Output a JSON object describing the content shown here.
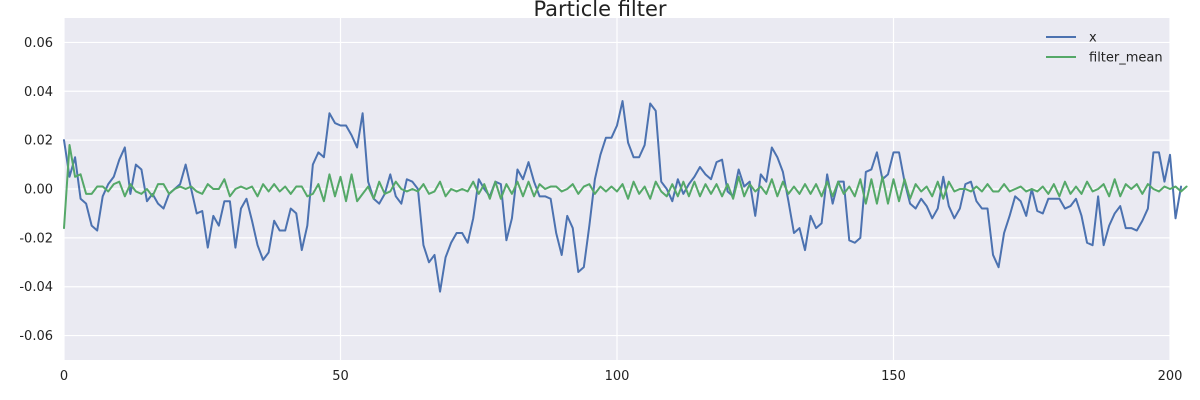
{
  "chart_data": {
    "type": "line",
    "title": "Particle filter",
    "xlabel": "",
    "ylabel": "",
    "xlim": [
      0,
      200
    ],
    "ylim": [
      -0.07,
      0.07
    ],
    "xticks": [
      0,
      50,
      100,
      150,
      200
    ],
    "yticks": [
      -0.06,
      -0.04,
      -0.02,
      0.0,
      0.02,
      0.04,
      0.06
    ],
    "grid": true,
    "legend_position": "top-right",
    "background_color": "#eaeaf2",
    "series": [
      {
        "name": "x",
        "color": "#4c72b0",
        "values": [
          0.02,
          0.005,
          0.013,
          -0.004,
          -0.006,
          -0.015,
          -0.017,
          -0.003,
          0.002,
          0.005,
          0.012,
          0.017,
          -0.002,
          0.01,
          0.008,
          -0.005,
          -0.002,
          -0.006,
          -0.008,
          -0.002,
          0.0,
          0.002,
          0.01,
          0.0,
          -0.01,
          -0.009,
          -0.024,
          -0.011,
          -0.015,
          -0.005,
          -0.005,
          -0.024,
          -0.008,
          -0.004,
          -0.013,
          -0.023,
          -0.029,
          -0.026,
          -0.013,
          -0.017,
          -0.017,
          -0.008,
          -0.01,
          -0.025,
          -0.015,
          0.01,
          0.015,
          0.013,
          0.031,
          0.027,
          0.026,
          0.026,
          0.022,
          0.017,
          0.031,
          0.003,
          -0.004,
          -0.006,
          -0.002,
          0.006,
          -0.003,
          -0.006,
          0.004,
          0.003,
          0.0,
          -0.023,
          -0.03,
          -0.027,
          -0.042,
          -0.028,
          -0.022,
          -0.018,
          -0.018,
          -0.022,
          -0.012,
          0.004,
          0.0,
          -0.003,
          0.003,
          0.002,
          -0.021,
          -0.012,
          0.008,
          0.004,
          0.011,
          0.003,
          -0.003,
          -0.003,
          -0.004,
          -0.018,
          -0.027,
          -0.011,
          -0.016,
          -0.034,
          -0.032,
          -0.015,
          0.004,
          0.014,
          0.021,
          0.021,
          0.026,
          0.036,
          0.019,
          0.013,
          0.013,
          0.018,
          0.035,
          0.032,
          0.003,
          0.0,
          -0.005,
          0.004,
          -0.002,
          0.002,
          0.005,
          0.009,
          0.006,
          0.004,
          0.011,
          0.012,
          -0.001,
          -0.003,
          0.008,
          0.001,
          0.003,
          -0.011,
          0.006,
          0.003,
          0.017,
          0.013,
          0.007,
          -0.005,
          -0.018,
          -0.016,
          -0.025,
          -0.011,
          -0.016,
          -0.014,
          0.006,
          -0.006,
          0.003,
          0.003,
          -0.021,
          -0.022,
          -0.02,
          0.007,
          0.008,
          0.015,
          0.004,
          0.006,
          0.015,
          0.015,
          0.003,
          -0.006,
          -0.008,
          -0.004,
          -0.007,
          -0.012,
          -0.008,
          0.005,
          -0.007,
          -0.012,
          -0.008,
          0.002,
          0.003,
          -0.005,
          -0.008,
          -0.008,
          -0.027,
          -0.032,
          -0.018,
          -0.011,
          -0.003,
          -0.005,
          -0.011,
          0.0,
          -0.009,
          -0.01,
          -0.004,
          -0.004,
          -0.004,
          -0.008,
          -0.007,
          -0.004,
          -0.011,
          -0.022,
          -0.023,
          -0.003,
          -0.023,
          -0.015,
          -0.01,
          -0.007,
          -0.016,
          -0.016,
          -0.017,
          -0.013,
          -0.008,
          0.015,
          0.015,
          0.003,
          0.014,
          -0.012,
          0.001
        ]
      },
      {
        "name": "filter_mean",
        "color": "#55a868",
        "values": [
          -0.016,
          0.018,
          0.005,
          0.006,
          -0.002,
          -0.002,
          0.001,
          0.001,
          -0.001,
          0.002,
          0.003,
          -0.003,
          0.002,
          -0.001,
          -0.002,
          0.0,
          -0.003,
          0.002,
          0.002,
          -0.002,
          0.0,
          0.001,
          0.0,
          0.001,
          -0.001,
          -0.002,
          0.002,
          0.0,
          0.0,
          0.004,
          -0.003,
          0.0,
          0.001,
          0.0,
          0.001,
          -0.003,
          0.002,
          -0.001,
          0.002,
          -0.001,
          0.001,
          -0.002,
          0.001,
          0.001,
          -0.003,
          -0.002,
          0.002,
          -0.005,
          0.006,
          -0.003,
          0.005,
          -0.005,
          0.006,
          -0.005,
          -0.002,
          0.001,
          -0.004,
          0.003,
          -0.002,
          -0.001,
          0.003,
          0.0,
          -0.001,
          0.0,
          -0.001,
          0.002,
          -0.002,
          -0.001,
          0.003,
          -0.003,
          0.0,
          -0.001,
          0.0,
          -0.001,
          0.003,
          -0.002,
          0.002,
          -0.004,
          0.003,
          -0.004,
          0.002,
          -0.002,
          0.003,
          -0.003,
          0.003,
          -0.003,
          0.002,
          0.0,
          0.001,
          0.001,
          -0.001,
          0.0,
          0.002,
          -0.002,
          0.001,
          0.002,
          -0.002,
          0.001,
          -0.001,
          0.001,
          -0.001,
          0.002,
          -0.004,
          0.003,
          -0.002,
          0.001,
          -0.004,
          0.003,
          -0.001,
          -0.003,
          0.002,
          -0.003,
          0.003,
          -0.003,
          0.003,
          -0.003,
          0.002,
          -0.002,
          0.002,
          -0.003,
          0.002,
          -0.004,
          0.005,
          -0.003,
          0.002,
          -0.001,
          0.001,
          -0.002,
          0.004,
          -0.003,
          0.003,
          -0.002,
          0.001,
          -0.002,
          0.002,
          -0.002,
          0.002,
          -0.003,
          0.003,
          -0.003,
          0.003,
          -0.002,
          0.001,
          -0.003,
          0.004,
          -0.006,
          0.004,
          -0.006,
          0.005,
          -0.006,
          0.004,
          -0.005,
          0.004,
          -0.004,
          0.002,
          -0.001,
          0.001,
          -0.003,
          0.003,
          -0.004,
          0.003,
          -0.001,
          0.0,
          0.0,
          -0.001,
          0.001,
          -0.001,
          0.002,
          -0.001,
          -0.001,
          0.002,
          -0.001,
          0.0,
          0.001,
          -0.001,
          0.0,
          -0.001,
          0.001,
          -0.002,
          0.002,
          -0.003,
          0.003,
          -0.002,
          0.001,
          -0.002,
          0.003,
          -0.001,
          0.0,
          0.002,
          -0.003,
          0.004,
          -0.003,
          0.002,
          0.0,
          0.002,
          -0.002,
          0.002,
          0.0,
          -0.001,
          0.001,
          0.0,
          0.001,
          -0.001,
          0.001
        ]
      }
    ]
  }
}
